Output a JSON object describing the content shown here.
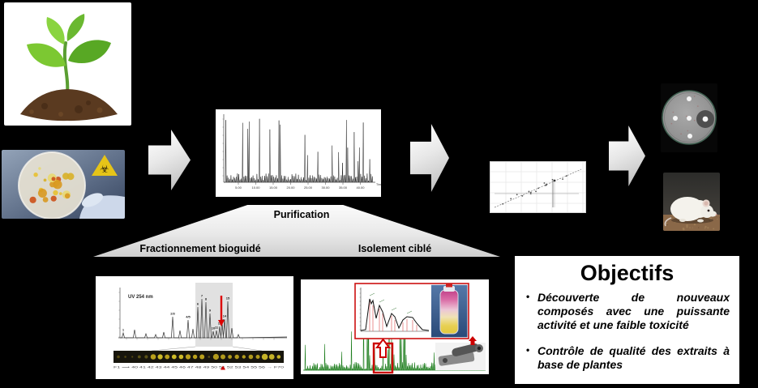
{
  "slide": {
    "flow_labels": {
      "purification": "Purification",
      "branch_left": "Fractionnement bioguidé",
      "branch_right": "Isolement ciblé"
    },
    "crude_chromatogram": {
      "x_ticks": [
        "5.00",
        "10.00",
        "15.00",
        "20.00",
        "25.00",
        "30.00",
        "35.00",
        "40.00"
      ],
      "x_axis_label": "Time"
    },
    "bioguided_panel": {
      "detector_label": "UV 254 nm",
      "peak_labels": [
        "1",
        "2/3",
        "4/5",
        "6",
        "7",
        "8",
        "9",
        "10",
        "11",
        "12",
        "13",
        "14",
        "15"
      ],
      "fraction_scale": "F1 ⟶ 40 41 42 43 44 45 46 47 48 49 50 51 52 53 54 55 56 → F70"
    },
    "objectives": {
      "title": "Objectifs",
      "bullets": [
        "Découverte de nouveaux composés avec une puissante activité et une faible toxicité",
        "Contrôle de qualité des extraits à base de plantes"
      ]
    },
    "colors": {
      "accent_red": "#cc0000",
      "chromatogram_green": "#1c7d1c",
      "funnel_gray": "#d9d9d9"
    }
  }
}
